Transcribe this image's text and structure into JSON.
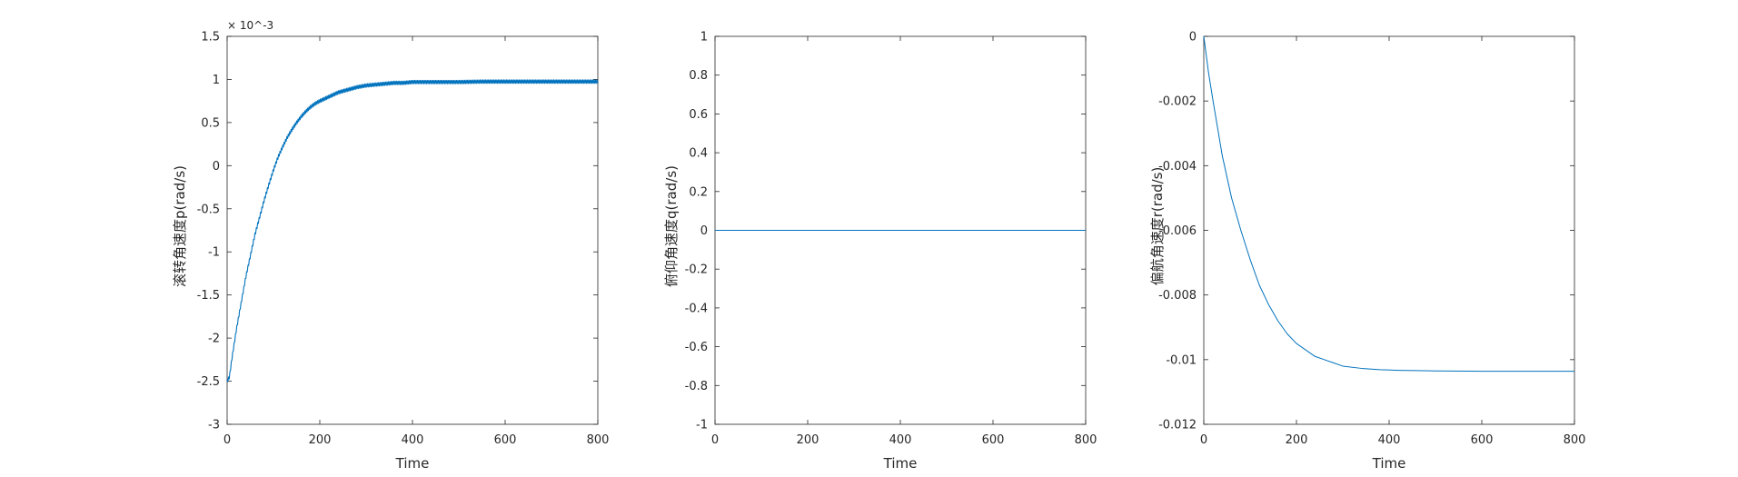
{
  "colors": {
    "line": "#0072BD",
    "axes": "#262626",
    "background": "#ffffff"
  },
  "chart_data": [
    {
      "type": "line",
      "title": "",
      "xlabel": "Time",
      "ylabel": "滚转角速度p(rad/s)",
      "y_exponent": "× 10^-3",
      "xlim": [
        0,
        800
      ],
      "ylim": [
        -3,
        1.5
      ],
      "xticks": [
        "0",
        "200",
        "400",
        "600",
        "800"
      ],
      "yticks": [
        "-3",
        "-2.5",
        "-2",
        "-1.5",
        "-1",
        "-0.5",
        "0",
        "0.5",
        "1",
        "1.5"
      ],
      "series": [
        {
          "oscillation": 0.02,
          "x": [
            0,
            5,
            10,
            20,
            30,
            40,
            50,
            60,
            70,
            80,
            90,
            100,
            110,
            120,
            130,
            140,
            150,
            160,
            170,
            180,
            190,
            200,
            220,
            240,
            260,
            280,
            300,
            320,
            340,
            360,
            380,
            400,
            450,
            500,
            550,
            600,
            650,
            700,
            750,
            800
          ],
          "y": [
            -2.5,
            -2.45,
            -2.25,
            -1.9,
            -1.6,
            -1.3,
            -1.05,
            -0.8,
            -0.6,
            -0.4,
            -0.22,
            -0.05,
            0.1,
            0.22,
            0.33,
            0.42,
            0.5,
            0.57,
            0.63,
            0.68,
            0.72,
            0.75,
            0.8,
            0.85,
            0.88,
            0.91,
            0.93,
            0.94,
            0.95,
            0.96,
            0.96,
            0.97,
            0.97,
            0.97,
            0.975,
            0.975,
            0.975,
            0.975,
            0.975,
            0.975
          ]
        }
      ]
    },
    {
      "type": "line",
      "title": "",
      "xlabel": "Time",
      "ylabel": "俯仰角速度q(rad/s)",
      "xlim": [
        0,
        800
      ],
      "ylim": [
        -1,
        1
      ],
      "xticks": [
        "0",
        "200",
        "400",
        "600",
        "800"
      ],
      "yticks": [
        "-1",
        "-0.8",
        "-0.6",
        "-0.4",
        "-0.2",
        "0",
        "0.2",
        "0.4",
        "0.6",
        "0.8",
        "1"
      ],
      "series": [
        {
          "x": [
            0,
            800
          ],
          "y": [
            0,
            0
          ]
        }
      ]
    },
    {
      "type": "line",
      "title": "",
      "xlabel": "Time",
      "ylabel": "偏航角速度r(rad/s)",
      "xlim": [
        0,
        800
      ],
      "ylim": [
        -0.012,
        0
      ],
      "xticks": [
        "0",
        "200",
        "400",
        "600",
        "800"
      ],
      "yticks": [
        "-0.012",
        "-0.01",
        "-0.008",
        "-0.006",
        "-0.004",
        "-0.002",
        "0"
      ],
      "series": [
        {
          "x": [
            0,
            10,
            20,
            40,
            60,
            80,
            100,
            120,
            140,
            160,
            180,
            200,
            220,
            240,
            260,
            280,
            300,
            340,
            380,
            420,
            460,
            500,
            600,
            700,
            800
          ],
          "y": [
            0,
            -0.0011,
            -0.002,
            -0.0037,
            -0.005,
            -0.006,
            -0.0069,
            -0.0077,
            -0.0083,
            -0.0088,
            -0.0092,
            -0.0095,
            -0.0097,
            -0.0099,
            -0.01,
            -0.0101,
            -0.0102,
            -0.01027,
            -0.01031,
            -0.01033,
            -0.01034,
            -0.01035,
            -0.01036,
            -0.01036,
            -0.01036
          ]
        }
      ]
    }
  ]
}
